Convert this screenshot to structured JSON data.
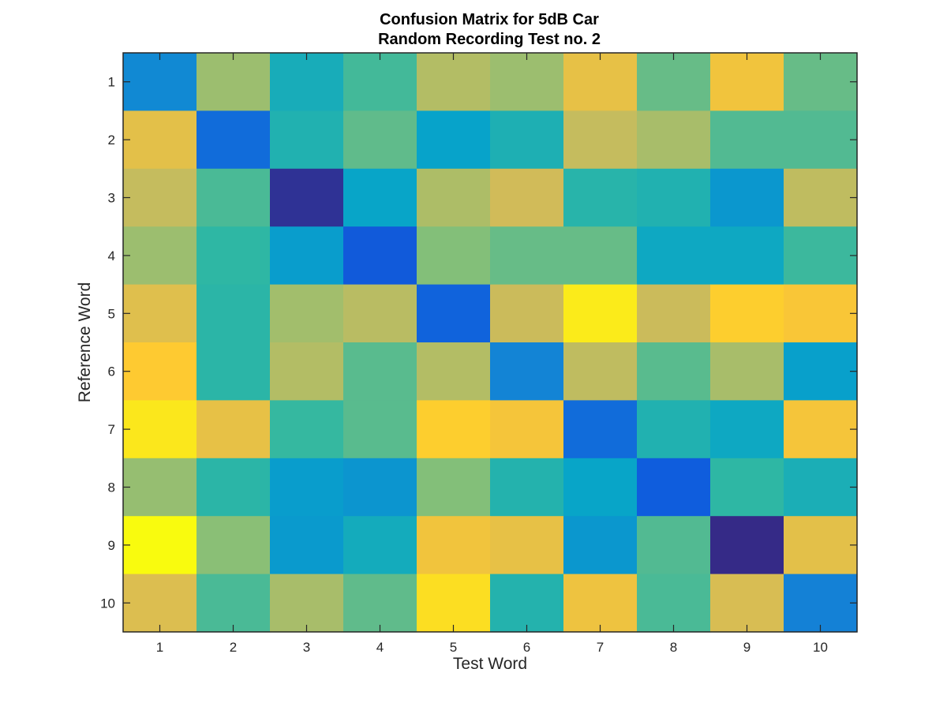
{
  "chart_data": {
    "type": "heatmap",
    "title": [
      "Confusion Matrix for 5dB Car",
      "Random Recording Test no. 2"
    ],
    "xlabel": "Test Word",
    "ylabel": "Reference Word",
    "x_ticks": [
      "1",
      "2",
      "3",
      "4",
      "5",
      "6",
      "7",
      "8",
      "9",
      "10"
    ],
    "y_ticks": [
      "1",
      "2",
      "3",
      "4",
      "5",
      "6",
      "7",
      "8",
      "9",
      "10"
    ],
    "colormap": "parula",
    "colormap_stops": [
      "#352a87",
      "#0f5cdd",
      "#1481d6",
      "#06a4ca",
      "#2eb7a4",
      "#87bf77",
      "#d1bb59",
      "#fec832",
      "#f9fb0e"
    ],
    "values": [
      [
        0.28,
        0.66,
        0.43,
        0.53,
        0.7,
        0.66,
        0.81,
        0.58,
        0.84,
        0.58
      ],
      [
        0.8,
        0.18,
        0.46,
        0.57,
        0.37,
        0.45,
        0.73,
        0.68,
        0.55,
        0.55
      ],
      [
        0.73,
        0.54,
        0.02,
        0.38,
        0.69,
        0.75,
        0.48,
        0.46,
        0.33,
        0.72
      ],
      [
        0.66,
        0.5,
        0.35,
        0.12,
        0.62,
        0.58,
        0.58,
        0.4,
        0.4,
        0.52
      ],
      [
        0.79,
        0.49,
        0.67,
        0.71,
        0.15,
        0.74,
        0.96,
        0.74,
        0.89,
        0.86
      ],
      [
        0.88,
        0.49,
        0.7,
        0.56,
        0.7,
        0.26,
        0.72,
        0.56,
        0.68,
        0.36
      ],
      [
        0.95,
        0.81,
        0.51,
        0.56,
        0.89,
        0.85,
        0.18,
        0.46,
        0.4,
        0.85
      ],
      [
        0.65,
        0.49,
        0.35,
        0.32,
        0.62,
        0.47,
        0.38,
        0.13,
        0.5,
        0.44
      ],
      [
        1.0,
        0.63,
        0.34,
        0.42,
        0.84,
        0.81,
        0.33,
        0.55,
        0.0,
        0.8
      ],
      [
        0.78,
        0.54,
        0.68,
        0.57,
        0.93,
        0.47,
        0.83,
        0.54,
        0.77,
        0.25
      ]
    ]
  }
}
